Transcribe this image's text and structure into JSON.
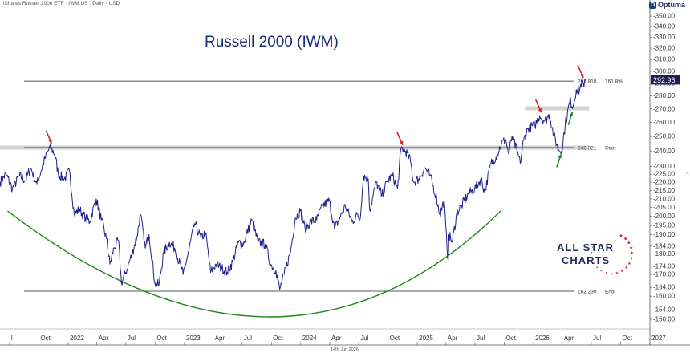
{
  "header": {
    "source": "iShares Russell 2000 ETF · IWM:US · Daily · USD",
    "brand": "Optuma",
    "brand_icon": "optuma-logo-icon"
  },
  "footer": {
    "date": "14th Jun 2026"
  },
  "chart_data": {
    "type": "line",
    "title": "Russell 2000 (IWM)",
    "y_scale": "log",
    "ylim": [
      146,
      358
    ],
    "x_start": "2021-06-01",
    "x_end": "2027-01-01",
    "x_tick_labels": [
      {
        "label": "l",
        "date": "2021-07-01"
      },
      {
        "label": "Oct",
        "date": "2021-10-01"
      },
      {
        "label": "2022",
        "date": "2022-01-01"
      },
      {
        "label": "Apr",
        "date": "2022-04-01"
      },
      {
        "label": "Jul",
        "date": "2022-07-01"
      },
      {
        "label": "Oct",
        "date": "2022-10-01"
      },
      {
        "label": "2023",
        "date": "2023-01-01"
      },
      {
        "label": "Apr",
        "date": "2023-04-01"
      },
      {
        "label": "Jul",
        "date": "2023-07-01"
      },
      {
        "label": "Oct",
        "date": "2023-10-01"
      },
      {
        "label": "2024",
        "date": "2024-01-01"
      },
      {
        "label": "Apr",
        "date": "2024-04-01"
      },
      {
        "label": "Jul",
        "date": "2024-07-01"
      },
      {
        "label": "Oct",
        "date": "2024-10-01"
      },
      {
        "label": "2025",
        "date": "2025-01-01"
      },
      {
        "label": "Apr",
        "date": "2025-04-01"
      },
      {
        "label": "Jul",
        "date": "2025-07-01"
      },
      {
        "label": "Oct",
        "date": "2025-10-01"
      },
      {
        "label": "2026",
        "date": "2026-01-01"
      },
      {
        "label": "Apr",
        "date": "2026-04-01"
      },
      {
        "label": "Jul",
        "date": "2026-07-01"
      },
      {
        "label": "Oct",
        "date": "2026-10-01"
      },
      {
        "label": "2027",
        "date": "2027-01-01"
      }
    ],
    "y_ticks": [
      "350.00",
      "340.00",
      "330.00",
      "320.00",
      "310.00",
      "300.00",
      "290.00",
      "280.00",
      "270.00",
      "260.00",
      "250.00",
      "240.00",
      "230.00",
      "225.00",
      "220.00",
      "215.00",
      "210.00",
      "205.00",
      "200.00",
      "195.00",
      "190.00",
      "184.00",
      "180.00",
      "174.00",
      "170.00",
      "164.00",
      "160.00",
      "154.00",
      "150.00"
    ],
    "series": [
      {
        "color": "#1c1f8c",
        "points": [
          [
            "2021-06-01",
            220
          ],
          [
            "2021-06-20",
            225
          ],
          [
            "2021-07-10",
            216
          ],
          [
            "2021-08-01",
            224
          ],
          [
            "2021-08-20",
            221
          ],
          [
            "2021-09-05",
            229
          ],
          [
            "2021-09-25",
            219
          ],
          [
            "2021-10-20",
            235
          ],
          [
            "2021-11-05",
            243
          ],
          [
            "2021-11-20",
            238
          ],
          [
            "2021-12-01",
            225
          ],
          [
            "2021-12-20",
            222
          ],
          [
            "2022-01-05",
            227
          ],
          [
            "2022-01-20",
            201
          ],
          [
            "2022-02-05",
            204
          ],
          [
            "2022-02-25",
            199
          ],
          [
            "2022-03-10",
            197
          ],
          [
            "2022-03-30",
            210
          ],
          [
            "2022-04-15",
            198
          ],
          [
            "2022-05-01",
            188
          ],
          [
            "2022-05-12",
            175
          ],
          [
            "2022-05-25",
            183
          ],
          [
            "2022-06-08",
            187
          ],
          [
            "2022-06-17",
            166
          ],
          [
            "2022-07-01",
            171
          ],
          [
            "2022-07-20",
            180
          ],
          [
            "2022-08-05",
            189
          ],
          [
            "2022-08-16",
            201
          ],
          [
            "2022-08-31",
            183
          ],
          [
            "2022-09-12",
            190
          ],
          [
            "2022-09-30",
            166
          ],
          [
            "2022-10-13",
            165
          ],
          [
            "2022-10-28",
            181
          ],
          [
            "2022-11-15",
            186
          ],
          [
            "2022-12-01",
            183
          ],
          [
            "2022-12-28",
            170
          ],
          [
            "2023-01-15",
            182
          ],
          [
            "2023-02-02",
            196
          ],
          [
            "2023-02-22",
            188
          ],
          [
            "2023-03-08",
            191
          ],
          [
            "2023-03-24",
            171
          ],
          [
            "2023-04-10",
            175
          ],
          [
            "2023-04-28",
            173
          ],
          [
            "2023-05-15",
            171
          ],
          [
            "2023-06-01",
            176
          ],
          [
            "2023-06-20",
            186
          ],
          [
            "2023-07-05",
            185
          ],
          [
            "2023-07-31",
            198
          ],
          [
            "2023-08-20",
            186
          ],
          [
            "2023-09-12",
            185
          ],
          [
            "2023-09-28",
            175
          ],
          [
            "2023-10-15",
            172
          ],
          [
            "2023-10-27",
            163
          ],
          [
            "2023-11-10",
            170
          ],
          [
            "2023-11-30",
            181
          ],
          [
            "2023-12-15",
            199
          ],
          [
            "2023-12-31",
            203
          ],
          [
            "2024-01-15",
            193
          ],
          [
            "2024-02-01",
            197
          ],
          [
            "2024-02-20",
            198
          ],
          [
            "2024-03-10",
            206
          ],
          [
            "2024-03-31",
            209
          ],
          [
            "2024-04-16",
            193
          ],
          [
            "2024-05-05",
            200
          ],
          [
            "2024-05-20",
            206
          ],
          [
            "2024-06-10",
            197
          ],
          [
            "2024-06-28",
            201
          ],
          [
            "2024-07-05",
            198
          ],
          [
            "2024-07-16",
            224
          ],
          [
            "2024-07-31",
            222
          ],
          [
            "2024-08-05",
            203
          ],
          [
            "2024-08-25",
            220
          ],
          [
            "2024-09-12",
            212
          ],
          [
            "2024-09-30",
            221
          ],
          [
            "2024-10-15",
            224
          ],
          [
            "2024-10-31",
            216
          ],
          [
            "2024-11-11",
            242
          ],
          [
            "2024-11-25",
            240
          ],
          [
            "2024-12-10",
            234
          ],
          [
            "2024-12-20",
            220
          ],
          [
            "2025-01-05",
            222
          ],
          [
            "2025-01-25",
            229
          ],
          [
            "2025-02-10",
            224
          ],
          [
            "2025-02-28",
            212
          ],
          [
            "2025-03-13",
            201
          ],
          [
            "2025-03-26",
            209
          ],
          [
            "2025-04-04",
            183
          ],
          [
            "2025-04-08",
            177
          ],
          [
            "2025-04-10",
            190
          ],
          [
            "2025-04-21",
            186
          ],
          [
            "2025-05-05",
            202
          ],
          [
            "2025-05-20",
            206
          ],
          [
            "2025-06-10",
            213
          ],
          [
            "2025-06-30",
            216
          ],
          [
            "2025-07-20",
            222
          ],
          [
            "2025-08-01",
            214
          ],
          [
            "2025-08-20",
            232
          ],
          [
            "2025-09-05",
            236
          ],
          [
            "2025-09-22",
            245
          ],
          [
            "2025-10-05",
            248
          ],
          [
            "2025-10-15",
            238
          ],
          [
            "2025-10-25",
            250
          ],
          [
            "2025-11-10",
            240
          ],
          [
            "2025-11-20",
            232
          ],
          [
            "2025-12-01",
            248
          ],
          [
            "2025-12-15",
            256
          ],
          [
            "2026-01-05",
            258
          ],
          [
            "2026-01-20",
            265
          ],
          [
            "2026-02-05",
            261
          ],
          [
            "2026-02-20",
            266
          ],
          [
            "2026-03-05",
            251
          ],
          [
            "2026-03-20",
            241
          ],
          [
            "2026-03-30",
            240
          ],
          [
            "2026-04-10",
            258
          ],
          [
            "2026-04-25",
            276
          ],
          [
            "2026-05-05",
            272
          ],
          [
            "2026-05-15",
            285
          ],
          [
            "2026-05-25",
            284
          ],
          [
            "2026-06-01",
            292
          ],
          [
            "2026-06-08",
            287
          ],
          [
            "2026-06-14",
            293
          ]
        ]
      }
    ],
    "hlines": [
      {
        "value": 291.818,
        "label": "291.818",
        "label2": "161.8%"
      },
      {
        "value": 242.321,
        "label": "242.321",
        "label2": "Start"
      },
      {
        "value": 162.23,
        "label": "162.230",
        "label2": "End"
      }
    ],
    "zones": [
      {
        "from": "2021-06-01",
        "to": "2026-06-24",
        "value": 242.321
      },
      {
        "from": "2025-12-05",
        "to": "2026-06-24",
        "value": 270.5
      }
    ],
    "last_value": "292.96",
    "last_value_num": 292.96,
    "markers": [
      {
        "date": "2021-11-05",
        "value": 243,
        "side": "above",
        "color": "#d62020"
      },
      {
        "date": "2024-11-11",
        "value": 242,
        "side": "above",
        "color": "#d62020"
      },
      {
        "date": "2026-01-20",
        "value": 265,
        "side": "above",
        "color": "#d62020"
      },
      {
        "date": "2026-06-01",
        "value": 292,
        "side": "above",
        "color": "#d62020"
      },
      {
        "date": "2026-03-30",
        "value": 240,
        "side": "below",
        "color": "#1e8a1e"
      },
      {
        "date": "2026-05-05",
        "value": 270,
        "side": "below",
        "color": "#1e8a1e"
      }
    ],
    "cup_arc": {
      "start": [
        "2021-06-25",
        203
      ],
      "bottom": [
        "2023-09-25",
        151
      ],
      "end": [
        "2025-09-20",
        203
      ],
      "color": "#1e8a1e"
    }
  },
  "logo": {
    "line1": "ALL STAR",
    "line2": "CHARTS",
    "icon": "stars-ring-icon",
    "color": "#1c2a5a",
    "star_color": "#d62020"
  }
}
